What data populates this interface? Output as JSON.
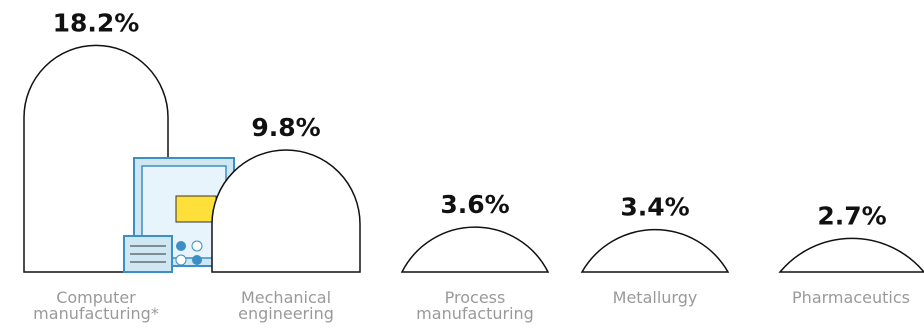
{
  "chart_data": {
    "type": "dome-bar",
    "categories": [
      "Computer manufacturing*",
      "Mechanical engineering",
      "Process manufacturing",
      "Metallurgy",
      "Pharmaceutics"
    ],
    "values": [
      18.2,
      9.8,
      3.6,
      3.4,
      2.7
    ],
    "value_labels": [
      "18.2%",
      "9.8%",
      "3.6%",
      "3.4%",
      "2.7%"
    ],
    "color": "#ffffff"
  }
}
